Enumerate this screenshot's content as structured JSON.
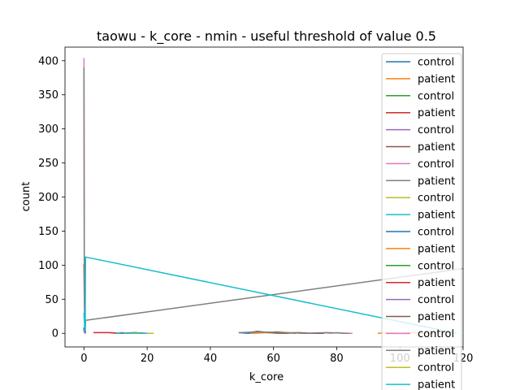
{
  "chart_data": {
    "type": "line",
    "title": "taowu - k_core - nmin - useful threshold of value 0.5",
    "xlabel": "k_core",
    "ylabel": "count",
    "xlim": [
      -6,
      120
    ],
    "ylim": [
      -20,
      420
    ],
    "xticks": [
      0,
      20,
      40,
      60,
      80,
      100,
      120
    ],
    "yticks": [
      0,
      50,
      100,
      150,
      200,
      250,
      300,
      350,
      400
    ],
    "xtick_labels": [
      "0",
      "20",
      "40",
      "60",
      "80",
      "100",
      "120"
    ],
    "ytick_labels": [
      "0",
      "50",
      "100",
      "150",
      "200",
      "250",
      "300",
      "350",
      "400"
    ],
    "grid": false,
    "legend_position": "right, extending below plot",
    "legend": [
      "control",
      "patient",
      "control",
      "patient",
      "control",
      "patient",
      "control",
      "patient",
      "control",
      "patient",
      "control",
      "patient",
      "control",
      "patient",
      "control",
      "patient",
      "control",
      "patient",
      "control",
      "patient"
    ],
    "series": [
      {
        "color": "#1f77b4",
        "x": [
          0,
          0,
          0.1,
          0.2,
          0.3,
          0.4
        ],
        "y": [
          4,
          8,
          3,
          2,
          1,
          0
        ]
      },
      {
        "color": "#ff7f0e",
        "x": [
          93,
          96,
          100,
          104,
          108,
          112
        ],
        "y": [
          0,
          1,
          0,
          1,
          0,
          0
        ]
      },
      {
        "color": "#2ca02c",
        "x": [
          0,
          0.1,
          0.2,
          0.3,
          0.4,
          0.5
        ],
        "y": [
          6,
          5,
          4,
          2,
          1,
          0
        ]
      },
      {
        "color": "#d62728",
        "x": [
          0,
          0.1,
          0.2,
          0.3,
          0.4,
          0.5
        ],
        "y": [
          102,
          60,
          30,
          10,
          5,
          2
        ]
      },
      {
        "color": "#9467bd",
        "x": [
          0,
          0.1,
          0.2,
          0.3,
          0.4,
          0.5
        ],
        "y": [
          5,
          4,
          3,
          2,
          1,
          0
        ]
      },
      {
        "color": "#8c564b",
        "x": [
          52,
          55,
          58,
          61,
          64,
          67
        ],
        "y": [
          1,
          3,
          1,
          2,
          1,
          0
        ]
      },
      {
        "color": "#e377c2",
        "x": [
          0,
          0.1,
          0.2,
          0.3,
          0.4,
          0.5
        ],
        "y": [
          404,
          120,
          40,
          10,
          3,
          1
        ]
      },
      {
        "color": "#7f7f7f",
        "x": [
          0,
          0.1,
          0.2,
          0.3,
          0.4,
          0.5,
          120
        ],
        "y": [
          390,
          110,
          40,
          15,
          5,
          19,
          95
        ]
      },
      {
        "color": "#bcbd22",
        "x": [
          8,
          10,
          12,
          14,
          16,
          18
        ],
        "y": [
          1,
          0,
          1,
          0,
          0,
          0
        ]
      },
      {
        "color": "#17becf",
        "x": [
          0,
          0.1,
          0.2,
          0.3,
          0.4,
          0.5,
          118
        ],
        "y": [
          30,
          20,
          10,
          5,
          2,
          112,
          0
        ]
      },
      {
        "color": "#1f77b4",
        "x": [
          49,
          52,
          55,
          58,
          61,
          64
        ],
        "y": [
          1,
          0,
          2,
          1,
          0,
          0
        ]
      },
      {
        "color": "#ff7f0e",
        "x": [
          53,
          58,
          62,
          66,
          70,
          74
        ],
        "y": [
          0,
          1,
          0,
          1,
          0,
          0
        ]
      },
      {
        "color": "#2ca02c",
        "x": [
          0,
          0.1,
          0.2,
          0.3,
          0.4,
          0.5
        ],
        "y": [
          3,
          2,
          2,
          1,
          1,
          0
        ]
      },
      {
        "color": "#d62728",
        "x": [
          3,
          8,
          12,
          16,
          20,
          22
        ],
        "y": [
          1,
          1,
          0,
          1,
          0,
          0
        ]
      },
      {
        "color": "#9467bd",
        "x": [
          0,
          0.1,
          0.2,
          0.3,
          0.4,
          0.5
        ],
        "y": [
          2,
          3,
          2,
          1,
          0,
          0
        ]
      },
      {
        "color": "#8c564b",
        "x": [
          56,
          60,
          64,
          68,
          72,
          76
        ],
        "y": [
          2,
          1,
          0,
          1,
          0,
          0
        ]
      },
      {
        "color": "#e377c2",
        "x": [
          76,
          78,
          80,
          82,
          84,
          85
        ],
        "y": [
          1,
          0,
          1,
          0,
          0,
          0
        ]
      },
      {
        "color": "#7f7f7f",
        "x": [
          49,
          56,
          63,
          70,
          77,
          84
        ],
        "y": [
          1,
          2,
          1,
          0,
          1,
          0
        ]
      },
      {
        "color": "#bcbd22",
        "x": [
          17,
          18,
          19,
          20,
          21,
          22
        ],
        "y": [
          1,
          0,
          0,
          0,
          0,
          0
        ]
      },
      {
        "color": "#17becf",
        "x": [
          10,
          12,
          14,
          16,
          18,
          20
        ],
        "y": [
          0,
          1,
          0,
          1,
          0,
          0
        ]
      }
    ]
  }
}
